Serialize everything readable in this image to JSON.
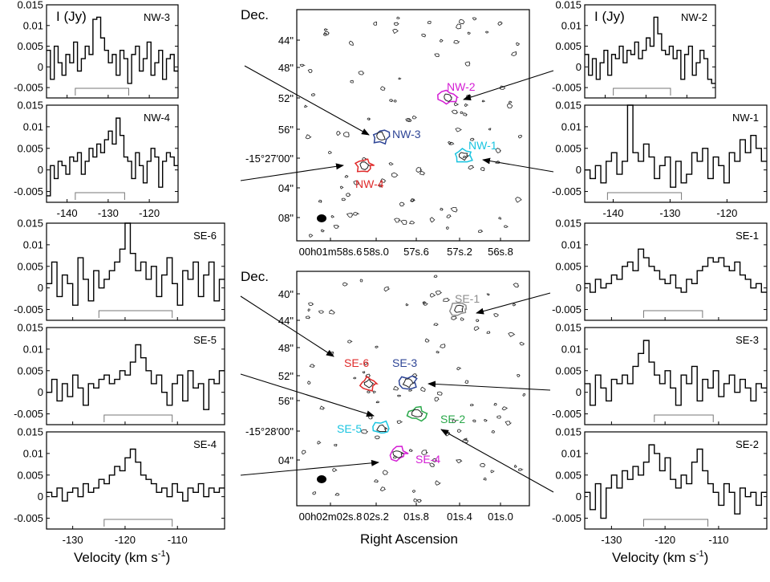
{
  "chart_data": {
    "type": "line",
    "intensity_label": "I (Jy)",
    "velocity_label_main": "Velocity (km s",
    "velocity_label_exp": "-1",
    "velocity_label_close": ")",
    "y_ticks": [
      "0.015",
      "0.01",
      "0.005",
      "0",
      "-0.005"
    ],
    "spectra": [
      {
        "name": "NW-3",
        "x_ticks": [],
        "xlim": [
          -145,
          -113
        ],
        "ylim": [
          -0.0075,
          0.015
        ],
        "values": [
          0.004,
          -0.003,
          0.005,
          0.001,
          -0.002,
          0.003,
          0.001,
          0.006,
          -0.001,
          0.002,
          0.005,
          0.003,
          0.0115,
          0.012,
          0.007,
          0.004,
          0.001,
          0.003,
          -0.002,
          0.004,
          0.002,
          -0.004,
          0.003,
          0.005,
          -0.001,
          0.002,
          0.006,
          -0.002,
          0.001,
          0.004,
          -0.003,
          0.002,
          0.003,
          -0.001
        ],
        "bracket": [
          -138,
          -125
        ]
      },
      {
        "name": "NW-4",
        "x_ticks": [
          "-140",
          "-130",
          "-120"
        ],
        "xlim": [
          -145,
          -113
        ],
        "ylim": [
          -0.0075,
          0.015
        ],
        "values": [
          -0.006,
          0.001,
          -0.002,
          0.002,
          0.001,
          -0.001,
          0.003,
          0.002,
          0.004,
          -0.001,
          0.002,
          0.005,
          0.003,
          0.006,
          0.004,
          0.007,
          0.009,
          0.006,
          0.012,
          0.008,
          0.003,
          0.002,
          -0.002,
          0.004,
          0.001,
          -0.003,
          0.002,
          0.005,
          0.003,
          -0.004,
          0.002,
          0.004,
          0.003,
          0.001
        ],
        "bracket": [
          -138,
          -126
        ]
      },
      {
        "name": "NW-2",
        "x_ticks": [],
        "xlim": [
          -145,
          -113
        ],
        "ylim": [
          -0.0075,
          0.015
        ],
        "values": [
          0.003,
          -0.002,
          0.002,
          -0.003,
          0.001,
          0.004,
          -0.002,
          0.003,
          0.002,
          0.005,
          0.001,
          0.004,
          0.003,
          0.006,
          0.002,
          0.004,
          0.007,
          0.005,
          0.012,
          0.008,
          0.004,
          0.003,
          0.005,
          0.002,
          0.004,
          -0.003,
          0.003,
          0.005,
          -0.002,
          0.001,
          0.004,
          0.002,
          -0.003,
          -0.004
        ],
        "bracket": [
          -138,
          -124
        ]
      },
      {
        "name": "NW-1",
        "x_ticks": [
          "-140",
          "-130",
          "-120"
        ],
        "xlim": [
          -145,
          -113
        ],
        "ylim": [
          -0.0075,
          0.015
        ],
        "values": [
          0.0,
          -0.002,
          0.001,
          -0.003,
          0.002,
          0.004,
          -0.001,
          0.002,
          0.015,
          0.004,
          0.002,
          0.006,
          0.003,
          -0.002,
          0.001,
          0.003,
          -0.004,
          0.002,
          -0.003,
          -0.001,
          0.004,
          0.002,
          0.005,
          -0.002,
          0.003,
          0.001,
          -0.003,
          0.004,
          0.002,
          0.007,
          0.004,
          0.008,
          0.005,
          0.002
        ],
        "bracket": [
          -141,
          -128
        ]
      },
      {
        "name": "SE-6",
        "x_ticks": [],
        "xlim": [
          -135,
          -101
        ],
        "ylim": [
          -0.0075,
          0.015
        ],
        "values": [
          0.001,
          0.006,
          -0.002,
          0.003,
          0.001,
          -0.004,
          0.007,
          0.002,
          -0.003,
          0.004,
          0.0,
          0.002,
          0.004,
          0.006,
          0.009,
          0.015,
          0.008,
          0.004,
          0.006,
          0.002,
          0.005,
          -0.002,
          0.003,
          0.007,
          0.001,
          -0.004,
          0.004,
          0.002,
          0.006,
          -0.002,
          0.003,
          0.006,
          -0.003,
          0.002
        ],
        "bracket": [
          -125,
          -111
        ]
      },
      {
        "name": "SE-5",
        "x_ticks": [],
        "xlim": [
          -135,
          -101
        ],
        "ylim": [
          -0.0075,
          0.015
        ],
        "values": [
          0.0,
          0.003,
          -0.002,
          0.002,
          -0.001,
          0.004,
          0.001,
          -0.003,
          0.002,
          0.001,
          0.003,
          0.004,
          0.002,
          0.003,
          0.005,
          0.004,
          0.007,
          0.011,
          0.008,
          0.005,
          0.002,
          0.004,
          0.0,
          -0.003,
          0.002,
          0.004,
          -0.002,
          0.005,
          0.001,
          0.002,
          -0.004,
          0.003,
          0.002,
          0.005
        ],
        "bracket": [
          -124,
          -111
        ]
      },
      {
        "name": "SE-4",
        "x_ticks": [
          "-130",
          "-120",
          "-110"
        ],
        "xlim": [
          -135,
          -101
        ],
        "ylim": [
          -0.0075,
          0.015
        ],
        "values": [
          0.001,
          0.0,
          0.002,
          -0.001,
          0.001,
          0.002,
          0.0,
          0.003,
          0.001,
          0.002,
          0.004,
          0.003,
          0.005,
          0.007,
          0.006,
          0.009,
          0.011,
          0.008,
          0.005,
          0.004,
          0.003,
          0.001,
          0.002,
          0.0,
          0.003,
          0.001,
          -0.001,
          0.002,
          0.001,
          0.003,
          0.0,
          0.002,
          0.001,
          0.002
        ],
        "bracket": [
          -124,
          -111
        ]
      },
      {
        "name": "SE-1",
        "x_ticks": [],
        "xlim": [
          -135,
          -101
        ],
        "ylim": [
          -0.0075,
          0.015
        ],
        "values": [
          0.001,
          -0.001,
          0.002,
          0.0,
          0.001,
          0.003,
          0.002,
          0.005,
          0.006,
          0.004,
          0.009,
          0.007,
          0.005,
          0.004,
          0.002,
          0.001,
          0.003,
          0.0,
          -0.001,
          0.002,
          0.001,
          0.004,
          0.005,
          0.007,
          0.006,
          0.007,
          0.005,
          0.004,
          0.006,
          0.003,
          0.002,
          0.0,
          0.001,
          -0.001
        ],
        "bracket": [
          -124,
          -113
        ]
      },
      {
        "name": "SE-3",
        "x_ticks": [],
        "xlim": [
          -135,
          -101
        ],
        "ylim": [
          -0.0075,
          0.015
        ],
        "values": [
          0.002,
          -0.003,
          0.004,
          0.001,
          -0.002,
          0.003,
          0.002,
          0.004,
          0.002,
          0.006,
          0.009,
          0.012,
          0.007,
          0.004,
          0.002,
          0.005,
          0.001,
          -0.003,
          0.004,
          0.002,
          0.006,
          -0.002,
          0.003,
          0.001,
          0.005,
          -0.001,
          0.002,
          0.004,
          0.0,
          0.003,
          0.001,
          -0.002,
          0.002,
          0.001
        ],
        "bracket": [
          -122,
          -111
        ]
      },
      {
        "name": "SE-2",
        "x_ticks": [
          "-130",
          "-120",
          "-110"
        ],
        "xlim": [
          -135,
          -101
        ],
        "ylim": [
          -0.0075,
          0.015
        ],
        "values": [
          0.001,
          -0.003,
          0.003,
          -0.005,
          0.002,
          0.005,
          0.002,
          0.006,
          0.004,
          0.007,
          0.005,
          0.008,
          0.012,
          0.01,
          0.006,
          0.009,
          0.004,
          0.002,
          0.005,
          0.003,
          0.008,
          0.011,
          0.006,
          0.003,
          0.001,
          -0.002,
          0.003,
          0.001,
          -0.004,
          0.002,
          0.0,
          0.001,
          -0.002,
          0.001
        ],
        "bracket": [
          -124,
          -112
        ]
      }
    ]
  },
  "maps": {
    "top": {
      "dec_label": "Dec.",
      "dec_ticks": [
        "44\"",
        "48\"",
        "52\"",
        "56\"",
        "-15°27′00\"",
        "04\"",
        "08\""
      ],
      "ra_ticks": [
        "00h01m58s.6",
        "58s.0",
        "57s.6",
        "57s.2",
        "56s.8"
      ],
      "sources": [
        {
          "name": "NW-1",
          "color": "#19c4e0"
        },
        {
          "name": "NW-2",
          "color": "#d41cd4"
        },
        {
          "name": "NW-3",
          "color": "#2e4596"
        },
        {
          "name": "NW-4",
          "color": "#e02a2a"
        }
      ]
    },
    "bottom": {
      "dec_label": "Dec.",
      "dec_ticks": [
        "40\"",
        "44\"",
        "48\"",
        "52\"",
        "56\"",
        "-15°28′00\"",
        "04\""
      ],
      "ra_ticks": [
        "00h02m02s.8",
        "02s.2",
        "01s.8",
        "01s.4",
        "01s.0"
      ],
      "xlabel": "Right Ascension",
      "sources": [
        {
          "name": "SE-1",
          "color": "#8c8c8c"
        },
        {
          "name": "SE-2",
          "color": "#2aa84a"
        },
        {
          "name": "SE-3",
          "color": "#2e4596"
        },
        {
          "name": "SE-4",
          "color": "#d41cd4"
        },
        {
          "name": "SE-5",
          "color": "#19c4e0"
        },
        {
          "name": "SE-6",
          "color": "#e02a2a"
        }
      ]
    }
  }
}
